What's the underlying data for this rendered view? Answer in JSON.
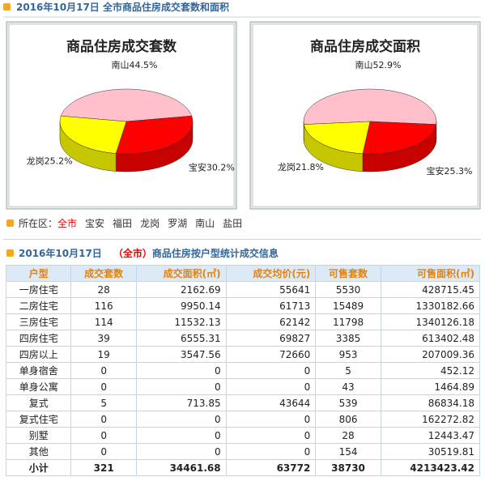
{
  "header": {
    "title": "2016年10月17日 全市商品住房成交套数和面积"
  },
  "charts": [
    {
      "type": "pie",
      "title": "商品住房成交套数",
      "categories": [
        "南山",
        "宝安",
        "龙岗"
      ],
      "values": [
        44.5,
        30.2,
        25.2
      ],
      "value_labels": [
        "44.5%",
        "30.2%",
        "25.2%"
      ],
      "colors": [
        "#ffc0cb",
        "#ff0000",
        "#ffff00"
      ]
    },
    {
      "type": "pie",
      "title": "商品住房成交面积",
      "categories": [
        "南山",
        "宝安",
        "龙岗"
      ],
      "values": [
        52.9,
        25.3,
        21.8
      ],
      "value_labels": [
        "52.9%",
        "25.3%",
        "21.8%"
      ],
      "colors": [
        "#ffc0cb",
        "#ff0000",
        "#ffff00"
      ]
    }
  ],
  "nav": {
    "label": "所在区：",
    "items": [
      "全市",
      "宝安",
      "福田",
      "龙岗",
      "罗湖",
      "南山",
      "盐田"
    ]
  },
  "section": {
    "date": "2016年10月17日",
    "scope": "（全市）",
    "title": "商品住房按户型统计成交信息"
  },
  "table": {
    "columns": [
      "户型",
      "成交套数",
      "成交面积(㎡)",
      "成交均价(元)",
      "可售套数",
      "可售面积(㎡)"
    ],
    "rows": [
      [
        "一房住宅",
        28,
        2162.69,
        55641,
        5530,
        428715.45
      ],
      [
        "二房住宅",
        116,
        9950.14,
        61713,
        15489,
        1330182.66
      ],
      [
        "三房住宅",
        114,
        11532.13,
        62142,
        11798,
        1340126.18
      ],
      [
        "四房住宅",
        39,
        6555.31,
        69827,
        3385,
        613402.48
      ],
      [
        "四房以上",
        19,
        3547.56,
        72660,
        953,
        207009.36
      ],
      [
        "单身宿舍",
        0,
        0,
        0,
        5,
        452.12
      ],
      [
        "单身公寓",
        0,
        0,
        0,
        43,
        1464.89
      ],
      [
        "复式",
        5,
        713.85,
        43644,
        539,
        86834.18
      ],
      [
        "复式住宅",
        0,
        0,
        0,
        806,
        162272.82
      ],
      [
        "别墅",
        0,
        0,
        0,
        28,
        12443.47
      ],
      [
        "其他",
        0,
        0,
        0,
        154,
        30519.81
      ],
      [
        "小计",
        321,
        34461.68,
        63772,
        38730,
        4213423.42
      ]
    ]
  }
}
